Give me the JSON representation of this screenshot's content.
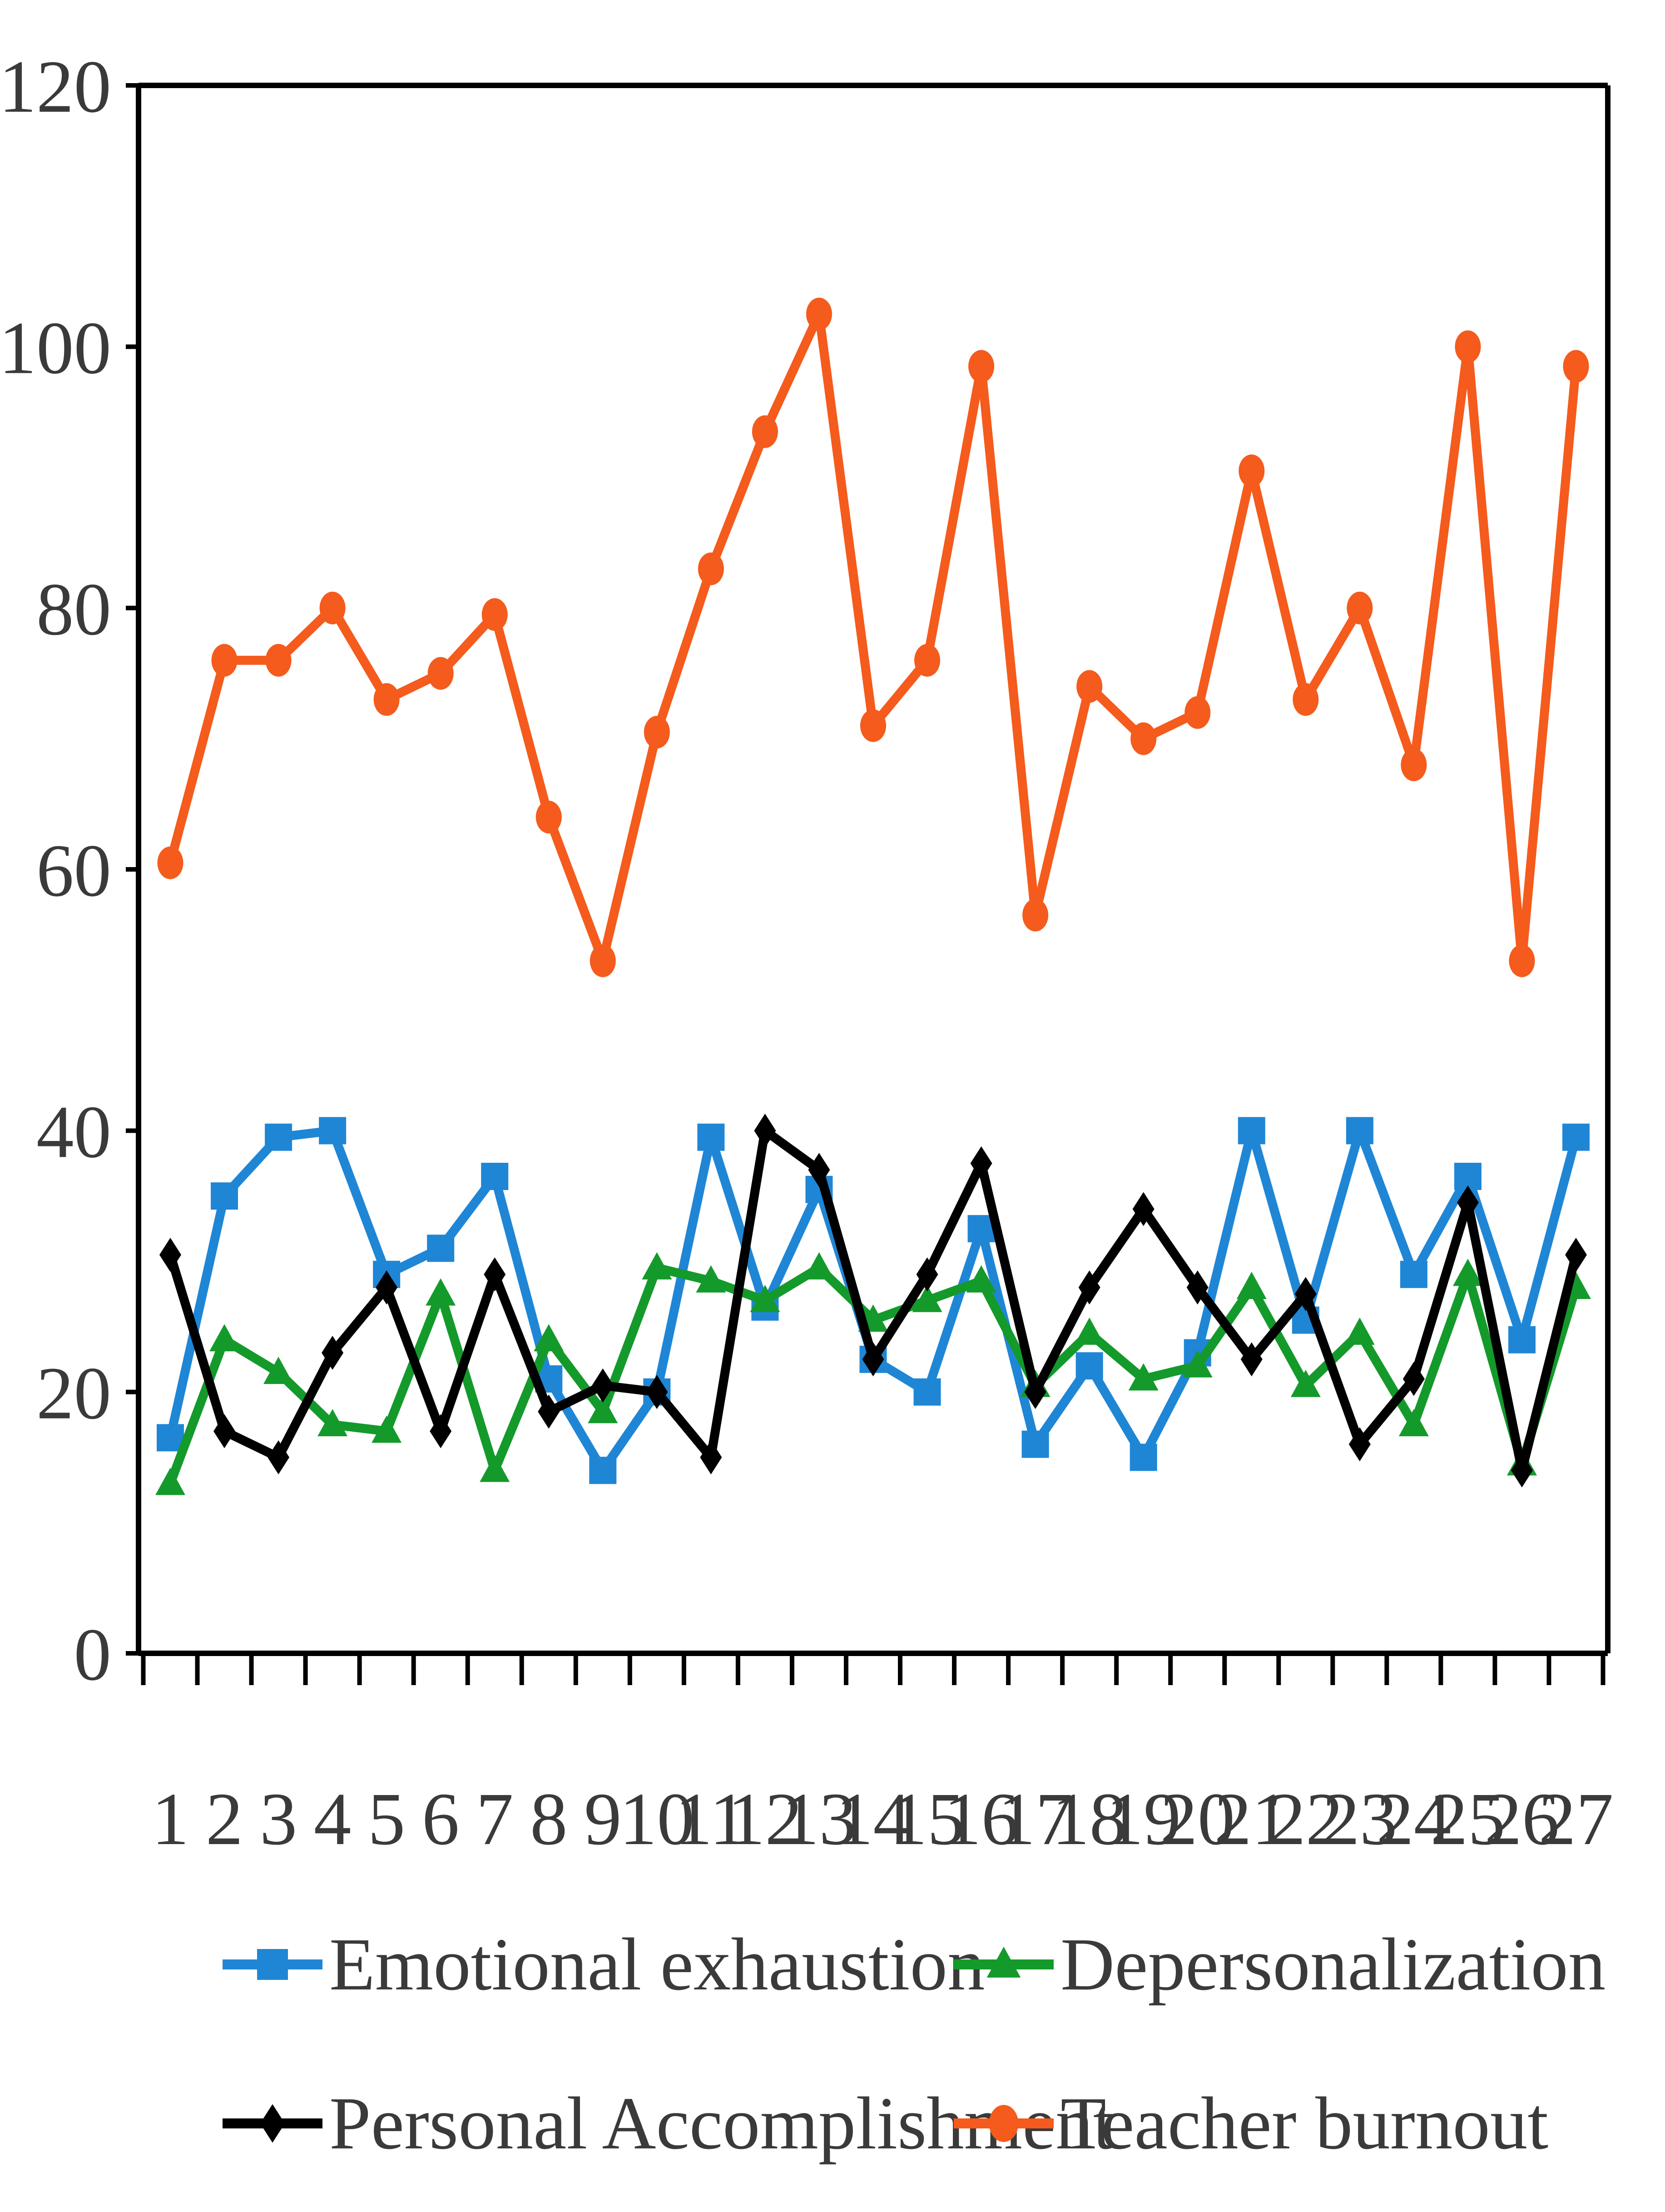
{
  "chart_data": {
    "type": "line",
    "title": "",
    "xlabel": "",
    "ylabel": "",
    "x": [
      1,
      2,
      3,
      4,
      5,
      6,
      7,
      8,
      9,
      10,
      11,
      12,
      13,
      14,
      15,
      16,
      17,
      18,
      19,
      20,
      21,
      22,
      23,
      24,
      25,
      26,
      27
    ],
    "ylim": [
      0,
      120
    ],
    "yticks": [
      0,
      20,
      40,
      60,
      80,
      100,
      120
    ],
    "grid": false,
    "legend_position": "bottom",
    "series": [
      {
        "name": "Emotional exhaustion",
        "color": "#1f86d6",
        "marker": "square",
        "values": [
          16.5,
          35,
          39.5,
          40,
          29,
          31,
          36.5,
          21,
          14,
          20,
          39.5,
          26.5,
          35.5,
          22.5,
          20,
          32.5,
          16,
          22,
          15,
          23,
          40,
          25.5,
          40,
          29,
          36.5,
          24,
          39.5
        ]
      },
      {
        "name": "Depersonalization",
        "color": "#149a2b",
        "marker": "triangle",
        "values": [
          13,
          24,
          21.5,
          17.5,
          17,
          27.5,
          14,
          24,
          18.5,
          29.5,
          28.5,
          27,
          29.5,
          25.5,
          27,
          28.5,
          20.5,
          24.5,
          21,
          22,
          28,
          20.5,
          24.5,
          17.5,
          29,
          14.5,
          28
        ]
      },
      {
        "name": "Personal Accomplishment",
        "color": "#000000",
        "marker": "diamond",
        "values": [
          30.5,
          17,
          15,
          23,
          28,
          17,
          29,
          18.5,
          20.5,
          20,
          15,
          40,
          37,
          22.5,
          29,
          37.5,
          20,
          28,
          34,
          28,
          22.5,
          27.5,
          16,
          21,
          34.5,
          14,
          30.5
        ]
      },
      {
        "name": "Teacher burnout",
        "color": "#f45b1c",
        "marker": "circle",
        "values": [
          60.5,
          76,
          76,
          80,
          73,
          75,
          79.5,
          64,
          53,
          70.5,
          83,
          93.5,
          102.5,
          71,
          76,
          98.5,
          56.5,
          74,
          70,
          72,
          90.5,
          73,
          80,
          68,
          100,
          53,
          98.5
        ]
      }
    ]
  }
}
